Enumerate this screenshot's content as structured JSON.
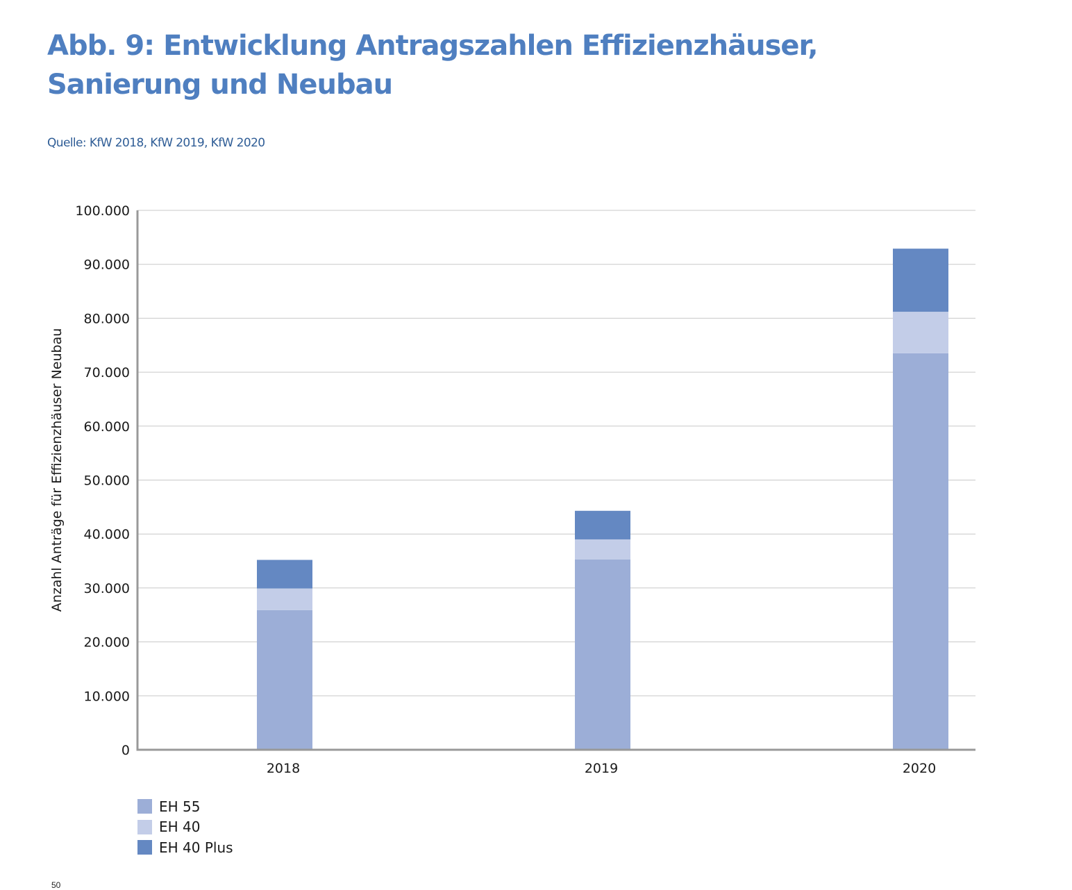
{
  "header": {
    "title": "Abb. 9: Entwicklung Antragszahlen Effizienzhäuser, Sanierung und Neubau",
    "source": "Quelle: KfW 2018, KfW 2019, KfW 2020"
  },
  "footer_fragment": "50",
  "chart_data": {
    "type": "bar",
    "stacked": true,
    "title": "Abb. 9: Entwicklung Antragszahlen Effizienzhäuser, Sanierung und Neubau",
    "xlabel": "",
    "ylabel": "Anzahl Anträge für Effizienzhäuser Neubau",
    "categories": [
      "2018",
      "2019",
      "2020"
    ],
    "ylim": [
      0,
      100000
    ],
    "yticks": [
      0,
      10000,
      20000,
      30000,
      40000,
      50000,
      60000,
      70000,
      80000,
      90000,
      100000
    ],
    "ytick_labels": [
      "0",
      "10.000",
      "20.000",
      "30.000",
      "40.000",
      "50.000",
      "60.000",
      "70.000",
      "80.000",
      "90.000",
      "100.000"
    ],
    "grid": true,
    "legend_position": "bottom-left",
    "series": [
      {
        "name": "EH 55",
        "color": "#9caed7",
        "values": [
          25900,
          35300,
          73500
        ]
      },
      {
        "name": "EH 40",
        "color": "#c3cde8",
        "values": [
          4000,
          3700,
          7700
        ]
      },
      {
        "name": "EH 40 Plus",
        "color": "#6488c2",
        "values": [
          5300,
          5300,
          11700
        ]
      }
    ]
  }
}
